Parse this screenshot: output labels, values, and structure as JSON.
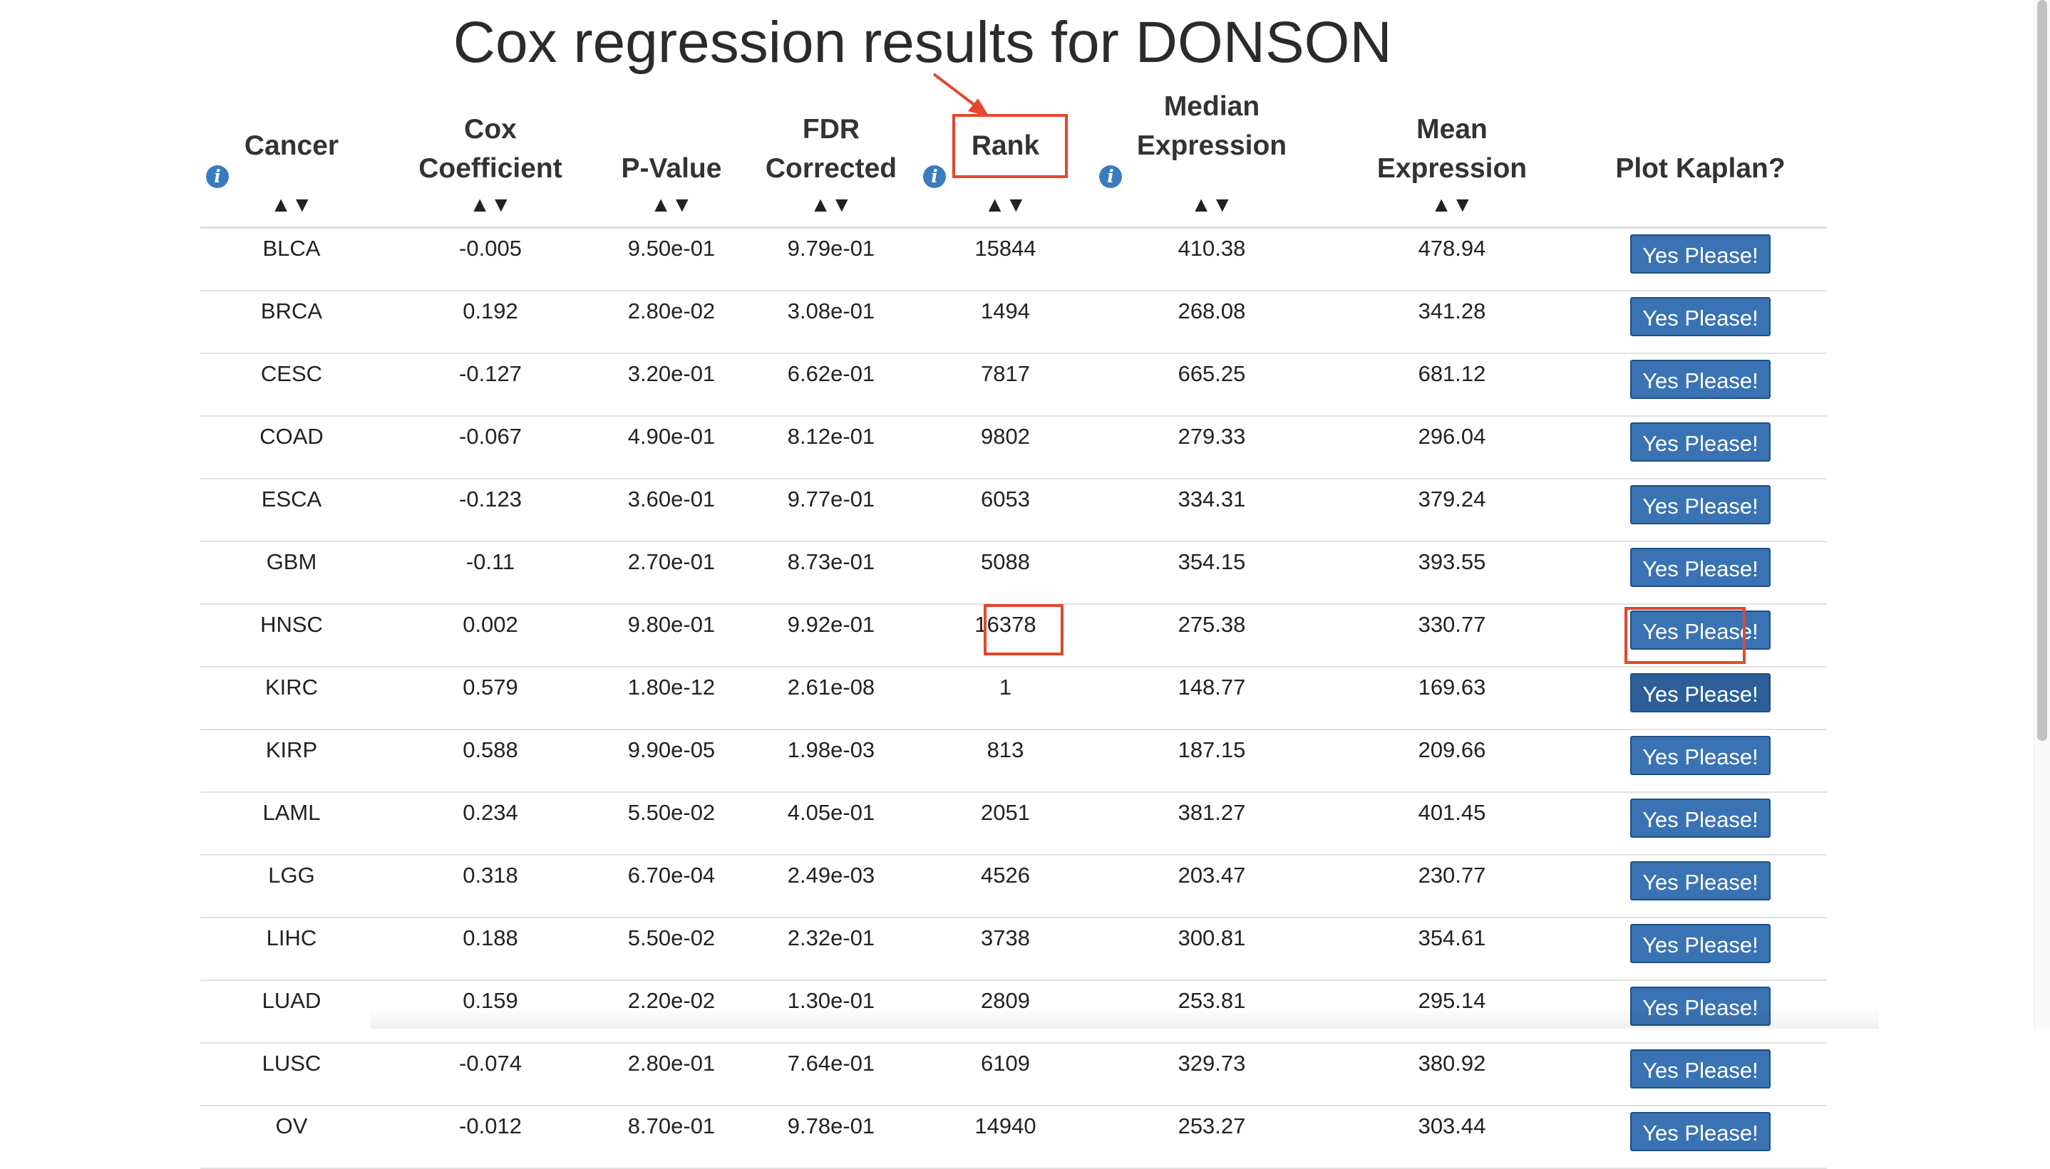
{
  "title": "Cox regression results for DONSON",
  "headers": {
    "cancer": [
      "Cancer"
    ],
    "cox": [
      "Cox",
      "Coefficient"
    ],
    "pvalue": [
      "P-Value"
    ],
    "fdr": [
      "FDR",
      "Corrected"
    ],
    "rank": [
      "Rank"
    ],
    "median": [
      "Median",
      "Expression"
    ],
    "mean": [
      "Mean",
      "Expression"
    ],
    "plot": [
      "Plot Kaplan?"
    ]
  },
  "sort_glyph": "▲▼",
  "info_glyph": "i",
  "button_label": "Yes Please!",
  "rows": [
    {
      "cancer": "BLCA",
      "cox": "-0.005",
      "pvalue": "9.50e-01",
      "fdr": "9.79e-01",
      "rank": "15844",
      "median": "410.38",
      "mean": "478.94"
    },
    {
      "cancer": "BRCA",
      "cox": "0.192",
      "pvalue": "2.80e-02",
      "fdr": "3.08e-01",
      "rank": "1494",
      "median": "268.08",
      "mean": "341.28"
    },
    {
      "cancer": "CESC",
      "cox": "-0.127",
      "pvalue": "3.20e-01",
      "fdr": "6.62e-01",
      "rank": "7817",
      "median": "665.25",
      "mean": "681.12"
    },
    {
      "cancer": "COAD",
      "cox": "-0.067",
      "pvalue": "4.90e-01",
      "fdr": "8.12e-01",
      "rank": "9802",
      "median": "279.33",
      "mean": "296.04"
    },
    {
      "cancer": "ESCA",
      "cox": "-0.123",
      "pvalue": "3.60e-01",
      "fdr": "9.77e-01",
      "rank": "6053",
      "median": "334.31",
      "mean": "379.24"
    },
    {
      "cancer": "GBM",
      "cox": "-0.11",
      "pvalue": "2.70e-01",
      "fdr": "8.73e-01",
      "rank": "5088",
      "median": "354.15",
      "mean": "393.55"
    },
    {
      "cancer": "HNSC",
      "cox": "0.002",
      "pvalue": "9.80e-01",
      "fdr": "9.92e-01",
      "rank": "16378",
      "median": "275.38",
      "mean": "330.77"
    },
    {
      "cancer": "KIRC",
      "cox": "0.579",
      "pvalue": "1.80e-12",
      "fdr": "2.61e-08",
      "rank": "1",
      "median": "148.77",
      "mean": "169.63"
    },
    {
      "cancer": "KIRP",
      "cox": "0.588",
      "pvalue": "9.90e-05",
      "fdr": "1.98e-03",
      "rank": "813",
      "median": "187.15",
      "mean": "209.66"
    },
    {
      "cancer": "LAML",
      "cox": "0.234",
      "pvalue": "5.50e-02",
      "fdr": "4.05e-01",
      "rank": "2051",
      "median": "381.27",
      "mean": "401.45"
    },
    {
      "cancer": "LGG",
      "cox": "0.318",
      "pvalue": "6.70e-04",
      "fdr": "2.49e-03",
      "rank": "4526",
      "median": "203.47",
      "mean": "230.77"
    },
    {
      "cancer": "LIHC",
      "cox": "0.188",
      "pvalue": "5.50e-02",
      "fdr": "2.32e-01",
      "rank": "3738",
      "median": "300.81",
      "mean": "354.61"
    },
    {
      "cancer": "LUAD",
      "cox": "0.159",
      "pvalue": "2.20e-02",
      "fdr": "1.30e-01",
      "rank": "2809",
      "median": "253.81",
      "mean": "295.14"
    },
    {
      "cancer": "LUSC",
      "cox": "-0.074",
      "pvalue": "2.80e-01",
      "fdr": "7.64e-01",
      "rank": "6109",
      "median": "329.73",
      "mean": "380.92"
    },
    {
      "cancer": "OV",
      "cox": "-0.012",
      "pvalue": "8.70e-01",
      "fdr": "9.78e-01",
      "rank": "14940",
      "median": "253.27",
      "mean": "303.44"
    }
  ],
  "colors": {
    "button_bg": "#3a73b3",
    "button_border": "#1e4e85",
    "info_icon": "#3a7bbf",
    "annotation": "#e2482e"
  }
}
